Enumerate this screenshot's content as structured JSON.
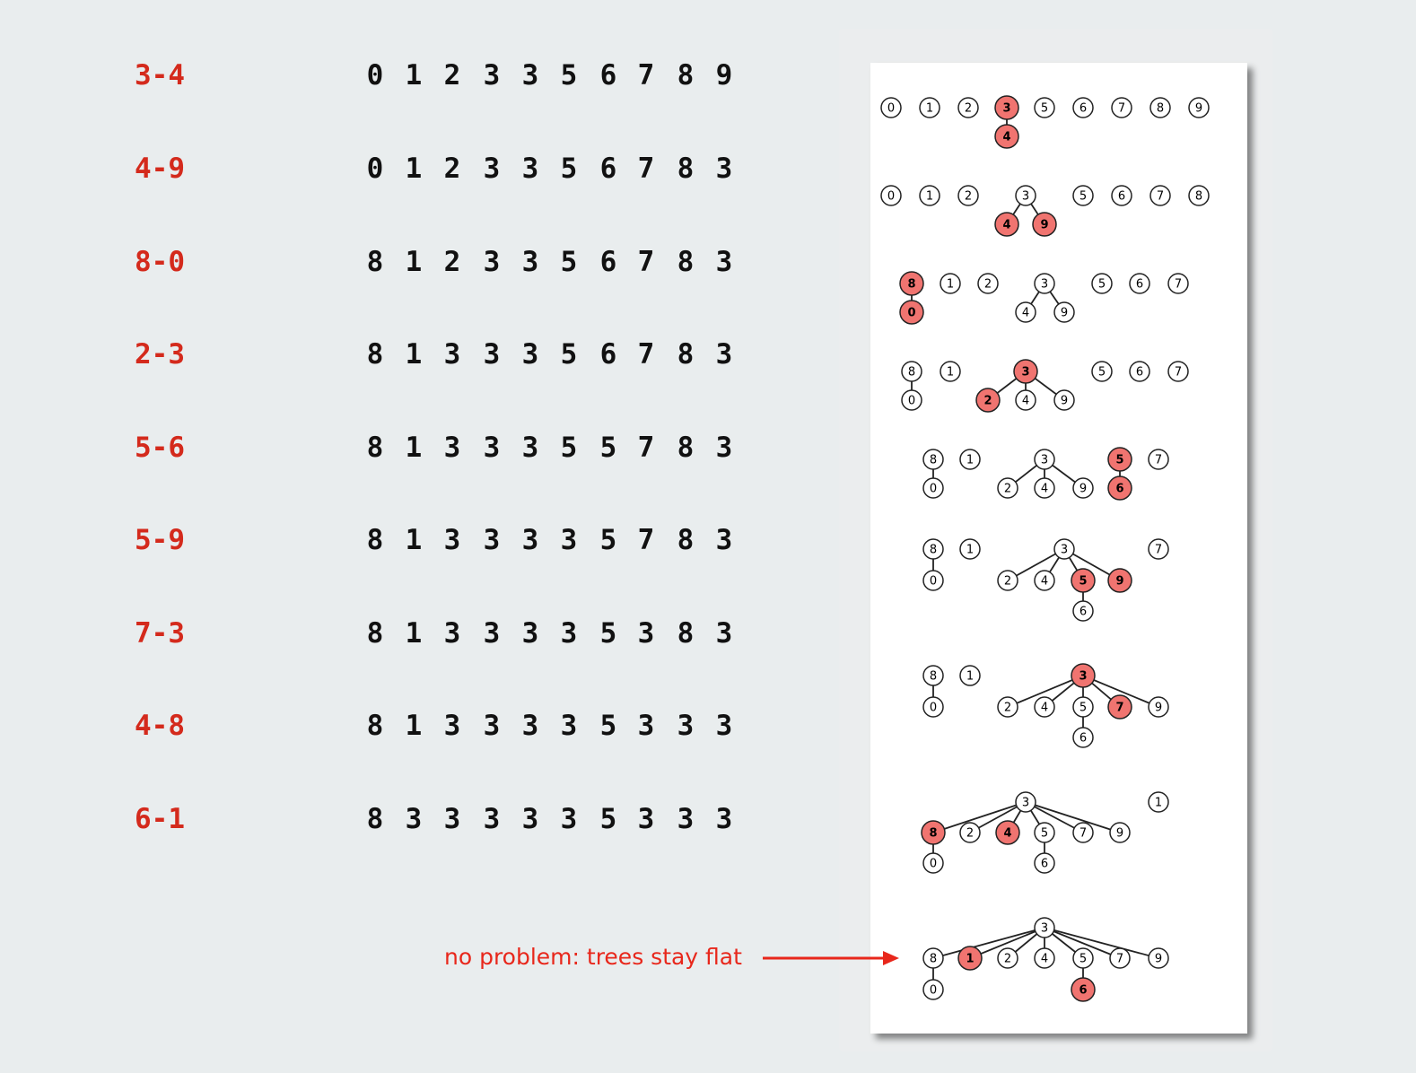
{
  "operations": [
    {
      "op": "3-4",
      "ids": [
        "0",
        "1",
        "2",
        "3",
        "3",
        "5",
        "6",
        "7",
        "8",
        "9"
      ]
    },
    {
      "op": "4-9",
      "ids": [
        "0",
        "1",
        "2",
        "3",
        "3",
        "5",
        "6",
        "7",
        "8",
        "3"
      ]
    },
    {
      "op": "8-0",
      "ids": [
        "8",
        "1",
        "2",
        "3",
        "3",
        "5",
        "6",
        "7",
        "8",
        "3"
      ]
    },
    {
      "op": "2-3",
      "ids": [
        "8",
        "1",
        "3",
        "3",
        "3",
        "5",
        "6",
        "7",
        "8",
        "3"
      ]
    },
    {
      "op": "5-6",
      "ids": [
        "8",
        "1",
        "3",
        "3",
        "3",
        "5",
        "5",
        "7",
        "8",
        "3"
      ]
    },
    {
      "op": "5-9",
      "ids": [
        "8",
        "1",
        "3",
        "3",
        "3",
        "3",
        "5",
        "7",
        "8",
        "3"
      ]
    },
    {
      "op": "7-3",
      "ids": [
        "8",
        "1",
        "3",
        "3",
        "3",
        "3",
        "5",
        "3",
        "8",
        "3"
      ]
    },
    {
      "op": "4-8",
      "ids": [
        "8",
        "1",
        "3",
        "3",
        "3",
        "3",
        "5",
        "3",
        "3",
        "3"
      ]
    },
    {
      "op": "6-1",
      "ids": [
        "8",
        "3",
        "3",
        "3",
        "3",
        "3",
        "5",
        "3",
        "3",
        "3"
      ]
    }
  ],
  "colors": {
    "op_text": "#d42a1c",
    "highlight_fill": "#f07470",
    "node_fill": "#ffffff",
    "annotation": "#e8271b"
  },
  "forests": [
    {
      "nodes": [
        [
          "0",
          993,
          120,
          0
        ],
        [
          "1",
          1036,
          120,
          0
        ],
        [
          "2",
          1079,
          120,
          0
        ],
        [
          "3",
          1122,
          120,
          1
        ],
        [
          "4",
          1122,
          152,
          1
        ],
        [
          "5",
          1164,
          120,
          0
        ],
        [
          "6",
          1207,
          120,
          0
        ],
        [
          "7",
          1250,
          120,
          0
        ],
        [
          "8",
          1293,
          120,
          0
        ],
        [
          "9",
          1336,
          120,
          0
        ]
      ],
      "edges": [
        [
          "3",
          "4"
        ]
      ]
    },
    {
      "nodes": [
        [
          "0",
          993,
          218,
          0
        ],
        [
          "1",
          1036,
          218,
          0
        ],
        [
          "2",
          1079,
          218,
          0
        ],
        [
          "3",
          1143,
          218,
          0
        ],
        [
          "4",
          1122,
          250,
          1
        ],
        [
          "9",
          1164,
          250,
          1
        ],
        [
          "5",
          1207,
          218,
          0
        ],
        [
          "6",
          1250,
          218,
          0
        ],
        [
          "7",
          1293,
          218,
          0
        ],
        [
          "8",
          1336,
          218,
          0
        ]
      ],
      "edges": [
        [
          "3",
          "4"
        ],
        [
          "3",
          "9"
        ]
      ]
    },
    {
      "nodes": [
        [
          "8",
          1016,
          316,
          1
        ],
        [
          "0",
          1016,
          348,
          1
        ],
        [
          "1",
          1059,
          316,
          0
        ],
        [
          "2",
          1101,
          316,
          0
        ],
        [
          "3",
          1164,
          316,
          0
        ],
        [
          "4",
          1143,
          348,
          0
        ],
        [
          "9",
          1186,
          348,
          0
        ],
        [
          "5",
          1228,
          316,
          0
        ],
        [
          "6",
          1270,
          316,
          0
        ],
        [
          "7",
          1313,
          316,
          0
        ]
      ],
      "edges": [
        [
          "8",
          "0"
        ],
        [
          "3",
          "4"
        ],
        [
          "3",
          "9"
        ]
      ]
    },
    {
      "nodes": [
        [
          "8",
          1016,
          414,
          0
        ],
        [
          "0",
          1016,
          446,
          0
        ],
        [
          "1",
          1059,
          414,
          0
        ],
        [
          "3",
          1143,
          414,
          1
        ],
        [
          "2",
          1101,
          446,
          1
        ],
        [
          "4",
          1143,
          446,
          0
        ],
        [
          "9",
          1186,
          446,
          0
        ],
        [
          "5",
          1228,
          414,
          0
        ],
        [
          "6",
          1270,
          414,
          0
        ],
        [
          "7",
          1313,
          414,
          0
        ]
      ],
      "edges": [
        [
          "8",
          "0"
        ],
        [
          "3",
          "2"
        ],
        [
          "3",
          "4"
        ],
        [
          "3",
          "9"
        ]
      ]
    },
    {
      "nodes": [
        [
          "8",
          1040,
          512,
          0
        ],
        [
          "0",
          1040,
          544,
          0
        ],
        [
          "1",
          1081,
          512,
          0
        ],
        [
          "3",
          1164,
          512,
          0
        ],
        [
          "2",
          1123,
          544,
          0
        ],
        [
          "4",
          1164,
          544,
          0
        ],
        [
          "9",
          1207,
          544,
          0
        ],
        [
          "5",
          1248,
          512,
          1
        ],
        [
          "6",
          1248,
          544,
          1
        ],
        [
          "7",
          1291,
          512,
          0
        ]
      ],
      "edges": [
        [
          "8",
          "0"
        ],
        [
          "3",
          "2"
        ],
        [
          "3",
          "4"
        ],
        [
          "3",
          "9"
        ],
        [
          "5",
          "6"
        ]
      ]
    },
    {
      "nodes": [
        [
          "8",
          1040,
          612,
          0
        ],
        [
          "0",
          1040,
          647,
          0
        ],
        [
          "1",
          1081,
          612,
          0
        ],
        [
          "3",
          1186,
          612,
          0
        ],
        [
          "2",
          1123,
          647,
          0
        ],
        [
          "4",
          1164,
          647,
          0
        ],
        [
          "5",
          1207,
          647,
          1
        ],
        [
          "9",
          1248,
          647,
          1
        ],
        [
          "6",
          1207,
          681,
          0
        ],
        [
          "7",
          1291,
          612,
          0
        ]
      ],
      "edges": [
        [
          "8",
          "0"
        ],
        [
          "3",
          "2"
        ],
        [
          "3",
          "4"
        ],
        [
          "3",
          "5"
        ],
        [
          "3",
          "9"
        ],
        [
          "5",
          "6"
        ]
      ]
    },
    {
      "nodes": [
        [
          "8",
          1040,
          753,
          0
        ],
        [
          "0",
          1040,
          788,
          0
        ],
        [
          "1",
          1081,
          753,
          0
        ],
        [
          "3",
          1207,
          753,
          1
        ],
        [
          "2",
          1123,
          788,
          0
        ],
        [
          "4",
          1164,
          788,
          0
        ],
        [
          "5",
          1207,
          788,
          0
        ],
        [
          "7",
          1248,
          788,
          1
        ],
        [
          "9",
          1291,
          788,
          0
        ],
        [
          "6",
          1207,
          822,
          0
        ]
      ],
      "edges": [
        [
          "8",
          "0"
        ],
        [
          "3",
          "2"
        ],
        [
          "3",
          "4"
        ],
        [
          "3",
          "5"
        ],
        [
          "3",
          "7"
        ],
        [
          "3",
          "9"
        ],
        [
          "5",
          "6"
        ]
      ]
    },
    {
      "nodes": [
        [
          "3",
          1143,
          894,
          0
        ],
        [
          "8",
          1040,
          928,
          1
        ],
        [
          "2",
          1081,
          928,
          0
        ],
        [
          "4",
          1123,
          928,
          1
        ],
        [
          "5",
          1164,
          928,
          0
        ],
        [
          "7",
          1207,
          928,
          0
        ],
        [
          "9",
          1248,
          928,
          0
        ],
        [
          "0",
          1040,
          962,
          0
        ],
        [
          "6",
          1164,
          962,
          0
        ],
        [
          "1",
          1291,
          894,
          0
        ]
      ],
      "edges": [
        [
          "3",
          "8"
        ],
        [
          "3",
          "2"
        ],
        [
          "3",
          "4"
        ],
        [
          "3",
          "5"
        ],
        [
          "3",
          "7"
        ],
        [
          "3",
          "9"
        ],
        [
          "8",
          "0"
        ],
        [
          "5",
          "6"
        ]
      ]
    },
    {
      "nodes": [
        [
          "3",
          1164,
          1034,
          0
        ],
        [
          "8",
          1040,
          1068,
          0
        ],
        [
          "1",
          1081,
          1068,
          1
        ],
        [
          "2",
          1123,
          1068,
          0
        ],
        [
          "4",
          1164,
          1068,
          0
        ],
        [
          "5",
          1207,
          1068,
          0
        ],
        [
          "7",
          1248,
          1068,
          0
        ],
        [
          "9",
          1291,
          1068,
          0
        ],
        [
          "0",
          1040,
          1103,
          0
        ],
        [
          "6",
          1207,
          1103,
          1
        ]
      ],
      "edges": [
        [
          "3",
          "8"
        ],
        [
          "3",
          "1"
        ],
        [
          "3",
          "2"
        ],
        [
          "3",
          "4"
        ],
        [
          "3",
          "5"
        ],
        [
          "3",
          "7"
        ],
        [
          "3",
          "9"
        ],
        [
          "8",
          "0"
        ],
        [
          "5",
          "6"
        ]
      ]
    }
  ],
  "annotation": "no problem: trees stay flat"
}
